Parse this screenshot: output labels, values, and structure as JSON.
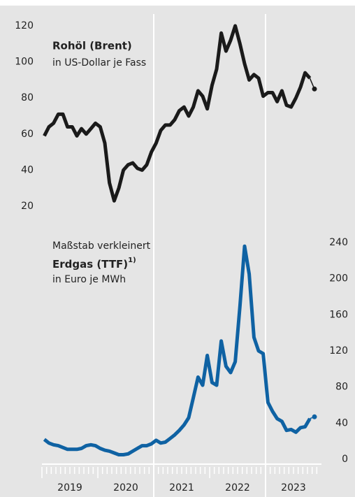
{
  "chart_data": [
    {
      "type": "line",
      "title": "Rohöl (Brent)",
      "subtitle": "in US-Dollar je Fass",
      "x": [
        2019.042,
        2019.125,
        2019.208,
        2019.292,
        2019.375,
        2019.458,
        2019.542,
        2019.625,
        2019.708,
        2019.792,
        2019.875,
        2019.958,
        2020.042,
        2020.125,
        2020.208,
        2020.292,
        2020.375,
        2020.458,
        2020.542,
        2020.625,
        2020.708,
        2020.792,
        2020.875,
        2020.958,
        2021.042,
        2021.125,
        2021.208,
        2021.292,
        2021.375,
        2021.458,
        2021.542,
        2021.625,
        2021.708,
        2021.792,
        2021.875,
        2021.958,
        2022.042,
        2022.125,
        2022.208,
        2022.292,
        2022.375,
        2022.458,
        2022.542,
        2022.625,
        2022.708,
        2022.792,
        2022.875,
        2022.958,
        2023.042,
        2023.125,
        2023.208,
        2023.292,
        2023.375,
        2023.458,
        2023.542,
        2023.625,
        2023.708,
        2023.792,
        2023.875
      ],
      "series": [
        {
          "name": "Rohöl (Brent)",
          "color": "#1a1a1a",
          "values": [
            59,
            64,
            66,
            71,
            71,
            64,
            64,
            59,
            63,
            60,
            63,
            66,
            64,
            55,
            33,
            23,
            30,
            40,
            43,
            44,
            41,
            40,
            43,
            50,
            55,
            62,
            65,
            65,
            68,
            73,
            75,
            70,
            75,
            84,
            81,
            74,
            87,
            96,
            116,
            106,
            112,
            120,
            110,
            99,
            90,
            93,
            91,
            81,
            83,
            83,
            78,
            84,
            76,
            75,
            80,
            86,
            94,
            91,
            85
          ]
        }
      ],
      "xlim": [
        2019,
        2024
      ],
      "ylim": [
        20,
        120
      ],
      "yticks": [
        20,
        40,
        60,
        80,
        100,
        120
      ]
    },
    {
      "type": "line",
      "annotation": "Maßstab verkleinert",
      "title": "Erdgas (TTF)",
      "title_note": "1)",
      "subtitle": "in Euro je MWh",
      "x": [
        2019.042,
        2019.125,
        2019.208,
        2019.292,
        2019.375,
        2019.458,
        2019.542,
        2019.625,
        2019.708,
        2019.792,
        2019.875,
        2019.958,
        2020.042,
        2020.125,
        2020.208,
        2020.292,
        2020.375,
        2020.458,
        2020.542,
        2020.625,
        2020.708,
        2020.792,
        2020.875,
        2020.958,
        2021.042,
        2021.125,
        2021.208,
        2021.292,
        2021.375,
        2021.458,
        2021.542,
        2021.625,
        2021.708,
        2021.792,
        2021.875,
        2021.958,
        2022.042,
        2022.125,
        2022.208,
        2022.292,
        2022.375,
        2022.458,
        2022.542,
        2022.625,
        2022.708,
        2022.792,
        2022.875,
        2022.958,
        2023.042,
        2023.125,
        2023.208,
        2023.292,
        2023.375,
        2023.458,
        2023.542,
        2023.625,
        2023.708,
        2023.792,
        2023.875
      ],
      "series": [
        {
          "name": "Erdgas (TTF)",
          "color": "#0f62a3",
          "values": [
            22,
            18,
            16,
            15,
            13,
            11,
            11,
            11,
            12,
            15,
            16,
            15,
            12,
            10,
            9,
            7,
            5,
            5,
            6,
            9,
            12,
            15,
            15,
            17,
            21,
            18,
            19,
            23,
            27,
            32,
            38,
            46,
            68,
            91,
            82,
            115,
            85,
            82,
            131,
            103,
            96,
            108,
            170,
            236,
            205,
            135,
            120,
            117,
            63,
            53,
            45,
            42,
            32,
            33,
            30,
            35,
            36,
            45,
            47
          ]
        }
      ],
      "xlim": [
        2019,
        2024
      ],
      "ylim": [
        0,
        240
      ],
      "yticks": [
        0,
        40,
        80,
        120,
        160,
        200,
        240
      ],
      "xticks": [
        {
          "value": 2019.5,
          "label": "2019"
        },
        {
          "value": 2020.5,
          "label": "2020"
        },
        {
          "value": 2021.5,
          "label": "2021"
        },
        {
          "value": 2022.5,
          "label": "2022"
        },
        {
          "value": 2023.5,
          "label": "2023"
        }
      ]
    }
  ]
}
